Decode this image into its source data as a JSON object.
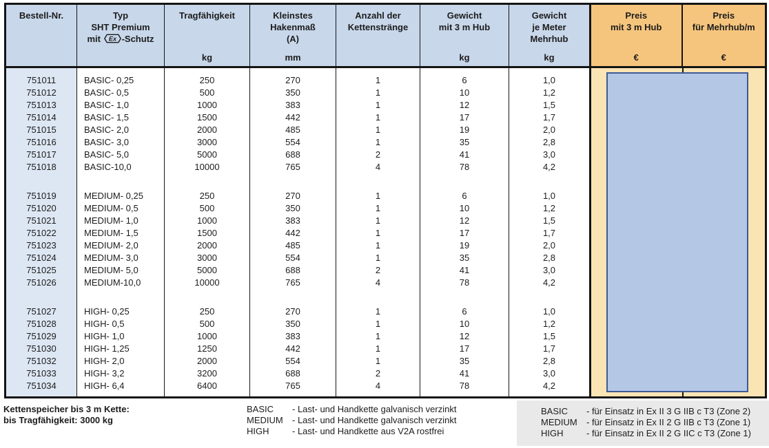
{
  "colors": {
    "header_blue": "#c8d7ea",
    "bestell_column_blue": "#dde7f3",
    "orange_header": "#f6c57d",
    "orange_body": "#fbe4b4",
    "price_box_fill": "#b4c8e6",
    "price_box_border": "#3c5a96",
    "legend_bg": "#e9e9e9"
  },
  "table": {
    "header": {
      "bestell": {
        "lines": [
          "Bestell-Nr."
        ],
        "unit": ""
      },
      "typ": {
        "line1": "Typ",
        "line2": "SHT Premium",
        "line3_prefix": "mit",
        "ex_symbol": "Ex",
        "line3_suffix": "-Schutz",
        "unit": ""
      },
      "tragfaehigkeit": {
        "lines": [
          "Tragfähigkeit"
        ],
        "unit": "kg"
      },
      "hakenmass": {
        "lines": [
          "Kleinstes",
          "Hakenmaß",
          "(A)"
        ],
        "unit": "mm"
      },
      "straenge": {
        "lines": [
          "Anzahl der",
          "Kettenstränge"
        ],
        "unit": ""
      },
      "gewicht_hub": {
        "lines": [
          "Gewicht",
          "mit 3 m Hub"
        ],
        "unit": "kg"
      },
      "gewicht_mehrhub": {
        "lines": [
          "Gewicht",
          "je Meter",
          "Mehrhub"
        ],
        "unit": "kg"
      },
      "preis_hub": {
        "lines": [
          "Preis",
          "mit 3 m Hub"
        ],
        "unit": "€"
      },
      "preis_mehrhub": {
        "lines": [
          "Preis",
          "für Mehrhub/m"
        ],
        "unit": "€"
      }
    },
    "column_keys": [
      "bestell_nr",
      "typ",
      "tragfaehigkeit_kg",
      "kleinstes_hakenmass_mm",
      "anzahl_kettenstraenge",
      "gewicht_mit_3m_hub_kg",
      "gewicht_je_meter_mehrhub_kg"
    ],
    "groups": [
      {
        "name": "BASIC",
        "rows": [
          [
            "751011",
            "BASIC- 0,25",
            "250",
            "270",
            "1",
            "6",
            "1,0"
          ],
          [
            "751012",
            "BASIC- 0,5",
            "500",
            "350",
            "1",
            "10",
            "1,2"
          ],
          [
            "751013",
            "BASIC- 1,0",
            "1000",
            "383",
            "1",
            "12",
            "1,5"
          ],
          [
            "751014",
            "BASIC- 1,5",
            "1500",
            "442",
            "1",
            "17",
            "1,7"
          ],
          [
            "751015",
            "BASIC- 2,0",
            "2000",
            "485",
            "1",
            "19",
            "2,0"
          ],
          [
            "751016",
            "BASIC- 3,0",
            "3000",
            "554",
            "1",
            "35",
            "2,8"
          ],
          [
            "751017",
            "BASIC- 5,0",
            "5000",
            "688",
            "2",
            "41",
            "3,0"
          ],
          [
            "751018",
            "BASIC-10,0",
            "10000",
            "765",
            "4",
            "78",
            "4,2"
          ]
        ]
      },
      {
        "name": "MEDIUM",
        "rows": [
          [
            "751019",
            "MEDIUM- 0,25",
            "250",
            "270",
            "1",
            "6",
            "1,0"
          ],
          [
            "751020",
            "MEDIUM- 0,5",
            "500",
            "350",
            "1",
            "10",
            "1,2"
          ],
          [
            "751021",
            "MEDIUM- 1,0",
            "1000",
            "383",
            "1",
            "12",
            "1,5"
          ],
          [
            "751022",
            "MEDIUM- 1,5",
            "1500",
            "442",
            "1",
            "17",
            "1,7"
          ],
          [
            "751023",
            "MEDIUM- 2,0",
            "2000",
            "485",
            "1",
            "19",
            "2,0"
          ],
          [
            "751024",
            "MEDIUM- 3,0",
            "3000",
            "554",
            "1",
            "35",
            "2,8"
          ],
          [
            "751025",
            "MEDIUM- 5,0",
            "5000",
            "688",
            "2",
            "41",
            "3,0"
          ],
          [
            "751026",
            "MEDIUM-10,0",
            "10000",
            "765",
            "4",
            "78",
            "4,2"
          ]
        ]
      },
      {
        "name": "HIGH",
        "rows": [
          [
            "751027",
            "HIGH- 0,25",
            "250",
            "270",
            "1",
            "6",
            "1,0"
          ],
          [
            "751028",
            "HIGH- 0,5",
            "500",
            "350",
            "1",
            "10",
            "1,2"
          ],
          [
            "751029",
            "HIGH- 1,0",
            "1000",
            "383",
            "1",
            "12",
            "1,5"
          ],
          [
            "751030",
            "HIGH- 1,25",
            "1250",
            "442",
            "1",
            "17",
            "1,7"
          ],
          [
            "751032",
            "HIGH- 2,0",
            "2000",
            "554",
            "1",
            "35",
            "2,8"
          ],
          [
            "751033",
            "HIGH- 3,2",
            "3200",
            "688",
            "2",
            "41",
            "3,0"
          ],
          [
            "751034",
            "HIGH- 6,4",
            "6400",
            "765",
            "4",
            "78",
            "4,2"
          ]
        ]
      }
    ]
  },
  "footer": {
    "left_lines": [
      "Kettenspeicher bis 3 m Kette:",
      "bis Tragfähigkeit: 3000 kg"
    ],
    "material_legend": [
      {
        "term": "BASIC",
        "desc": "- Last- und Handkette galvanisch verzinkt"
      },
      {
        "term": "MEDIUM",
        "desc": "- Last- und Handkette galvanisch verzinkt"
      },
      {
        "term": "HIGH",
        "desc": "- Last- und Handkette aus V2A rostfrei"
      }
    ],
    "ex_legend": [
      {
        "term": "BASIC",
        "desc": "- für Einsatz in Ex II 3 G IIB c T3 (Zone 2)"
      },
      {
        "term": "MEDIUM",
        "desc": "- für Einsatz in Ex II 2 G IIB c T3 (Zone 1)"
      },
      {
        "term": "HIGH",
        "desc": "- für Einsatz in Ex II 2 G IIC c T3 (Zone 1)"
      }
    ]
  }
}
